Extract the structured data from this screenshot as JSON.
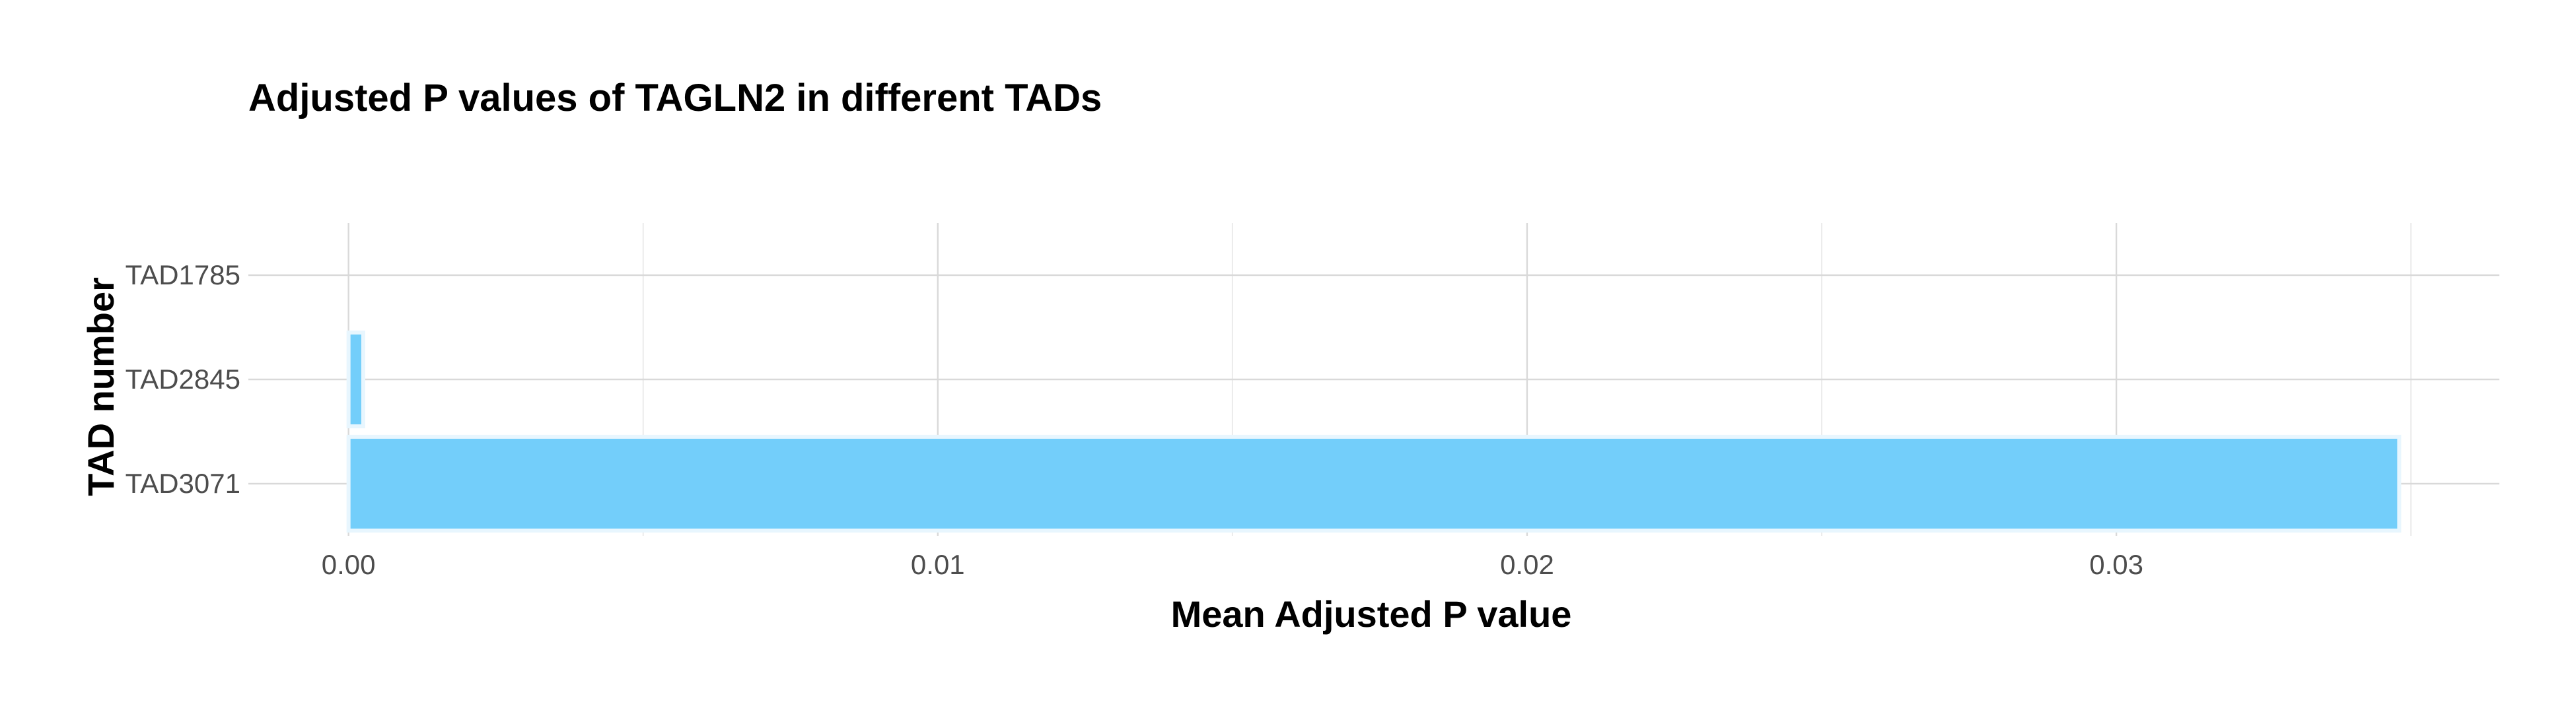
{
  "chart_data": {
    "type": "bar",
    "orientation": "horizontal",
    "title": "Adjusted P values of TAGLN2 in different TADs",
    "xlabel": "Mean Adjusted P value",
    "ylabel": "TAD number",
    "categories": [
      "TAD1785",
      "TAD2845",
      "TAD3071"
    ],
    "values": [
      0.0,
      0.00025,
      0.0348
    ],
    "xlim": [
      -0.0017,
      0.0365
    ],
    "x_ticks": [
      0.0,
      0.01,
      0.02,
      0.03
    ],
    "x_tick_labels": [
      "0.00",
      "0.01",
      "0.02",
      "0.03"
    ],
    "grid": true,
    "legend": "none",
    "colors": {
      "bar_fill": "#73CEFA",
      "bar_stroke": "#E8F6FE",
      "grid_major": "#D9D9D9",
      "grid_minor": "#EBEBEB",
      "tick_text": "#4D4D4D",
      "title_text": "#000000"
    }
  }
}
